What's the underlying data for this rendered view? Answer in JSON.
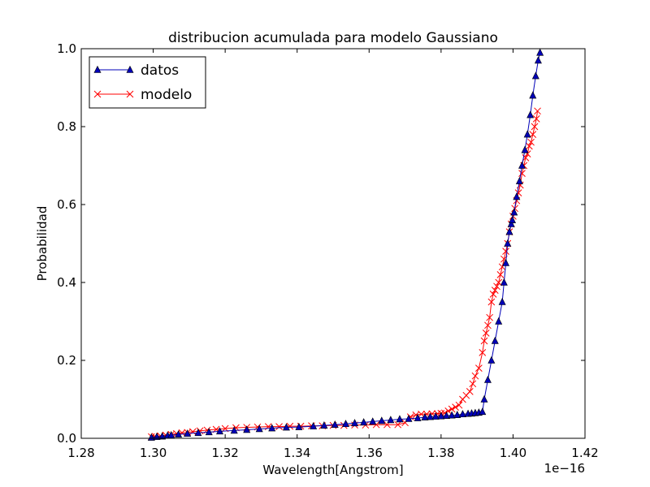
{
  "chart_data": {
    "type": "line",
    "title": "distribucion acumulada para modelo Gaussiano",
    "xlabel": "Wavelength[Angstrom]",
    "ylabel": "Probabilidad",
    "x_offset_label": "1e−16",
    "xlim": [
      1.28,
      1.42
    ],
    "ylim": [
      0.0,
      1.0
    ],
    "xticks": [
      "1.28",
      "1.30",
      "1.32",
      "1.34",
      "1.36",
      "1.38",
      "1.40",
      "1.42"
    ],
    "yticks": [
      "0.0",
      "0.2",
      "0.4",
      "0.6",
      "0.8",
      "1.0"
    ],
    "grid": false,
    "legend_position": "top-left",
    "series": [
      {
        "name": "datos",
        "color": "#0000b8",
        "marker": "triangle",
        "x": [
          1.2995,
          1.301,
          1.3025,
          1.304,
          1.305,
          1.307,
          1.3095,
          1.3125,
          1.3155,
          1.3185,
          1.3225,
          1.326,
          1.3295,
          1.333,
          1.337,
          1.3405,
          1.3445,
          1.3475,
          1.3505,
          1.3535,
          1.356,
          1.3585,
          1.361,
          1.3635,
          1.366,
          1.3685,
          1.371,
          1.3735,
          1.3755,
          1.377,
          1.3785,
          1.38,
          1.3815,
          1.383,
          1.3845,
          1.386,
          1.3875,
          1.3885,
          1.3895,
          1.3905,
          1.3915,
          1.392,
          1.393,
          1.394,
          1.395,
          1.396,
          1.397,
          1.3975,
          1.398,
          1.3985,
          1.399,
          1.3995,
          1.3998,
          1.4003,
          1.401,
          1.4018,
          1.4025,
          1.4033,
          1.404,
          1.4048,
          1.4055,
          1.4063,
          1.407,
          1.4075
        ],
        "y": [
          0.002,
          0.004,
          0.005,
          0.007,
          0.008,
          0.01,
          0.012,
          0.014,
          0.016,
          0.018,
          0.02,
          0.022,
          0.024,
          0.026,
          0.028,
          0.029,
          0.031,
          0.033,
          0.035,
          0.037,
          0.039,
          0.041,
          0.043,
          0.045,
          0.047,
          0.049,
          0.05,
          0.052,
          0.054,
          0.055,
          0.056,
          0.057,
          0.058,
          0.059,
          0.06,
          0.062,
          0.063,
          0.064,
          0.065,
          0.066,
          0.068,
          0.1,
          0.15,
          0.2,
          0.25,
          0.3,
          0.35,
          0.4,
          0.45,
          0.5,
          0.53,
          0.55,
          0.56,
          0.58,
          0.62,
          0.66,
          0.7,
          0.74,
          0.78,
          0.83,
          0.88,
          0.93,
          0.97,
          0.99
        ]
      },
      {
        "name": "modelo",
        "color": "#ff0000",
        "marker": "x",
        "x": [
          1.2995,
          1.3005,
          1.302,
          1.3035,
          1.305,
          1.3065,
          1.308,
          1.3095,
          1.311,
          1.313,
          1.315,
          1.3175,
          1.32,
          1.323,
          1.326,
          1.329,
          1.332,
          1.335,
          1.338,
          1.341,
          1.344,
          1.347,
          1.35,
          1.353,
          1.356,
          1.359,
          1.362,
          1.365,
          1.368,
          1.37,
          1.3715,
          1.373,
          1.3745,
          1.376,
          1.3775,
          1.379,
          1.38,
          1.381,
          1.382,
          1.383,
          1.384,
          1.385,
          1.386,
          1.387,
          1.388,
          1.3888,
          1.3895,
          1.3905,
          1.3915,
          1.392,
          1.3925,
          1.393,
          1.3935,
          1.394,
          1.3945,
          1.395,
          1.3955,
          1.396,
          1.3965,
          1.397,
          1.3975,
          1.398,
          1.3985,
          1.399,
          1.3995,
          1.4,
          1.4005,
          1.401,
          1.4015,
          1.402,
          1.4025,
          1.403,
          1.4035,
          1.404,
          1.4045,
          1.405,
          1.4055,
          1.406,
          1.4065,
          1.4068
        ],
        "y": [
          0.004,
          0.005,
          0.006,
          0.008,
          0.01,
          0.012,
          0.014,
          0.015,
          0.017,
          0.019,
          0.021,
          0.023,
          0.025,
          0.027,
          0.028,
          0.029,
          0.03,
          0.03,
          0.031,
          0.031,
          0.032,
          0.032,
          0.033,
          0.033,
          0.034,
          0.034,
          0.035,
          0.035,
          0.035,
          0.04,
          0.055,
          0.06,
          0.062,
          0.062,
          0.063,
          0.063,
          0.064,
          0.065,
          0.07,
          0.075,
          0.08,
          0.085,
          0.1,
          0.11,
          0.12,
          0.14,
          0.16,
          0.18,
          0.22,
          0.25,
          0.27,
          0.29,
          0.31,
          0.35,
          0.37,
          0.38,
          0.39,
          0.4,
          0.42,
          0.44,
          0.46,
          0.48,
          0.5,
          0.53,
          0.55,
          0.57,
          0.59,
          0.61,
          0.63,
          0.65,
          0.68,
          0.7,
          0.72,
          0.73,
          0.75,
          0.76,
          0.78,
          0.8,
          0.82,
          0.84
        ]
      }
    ]
  }
}
